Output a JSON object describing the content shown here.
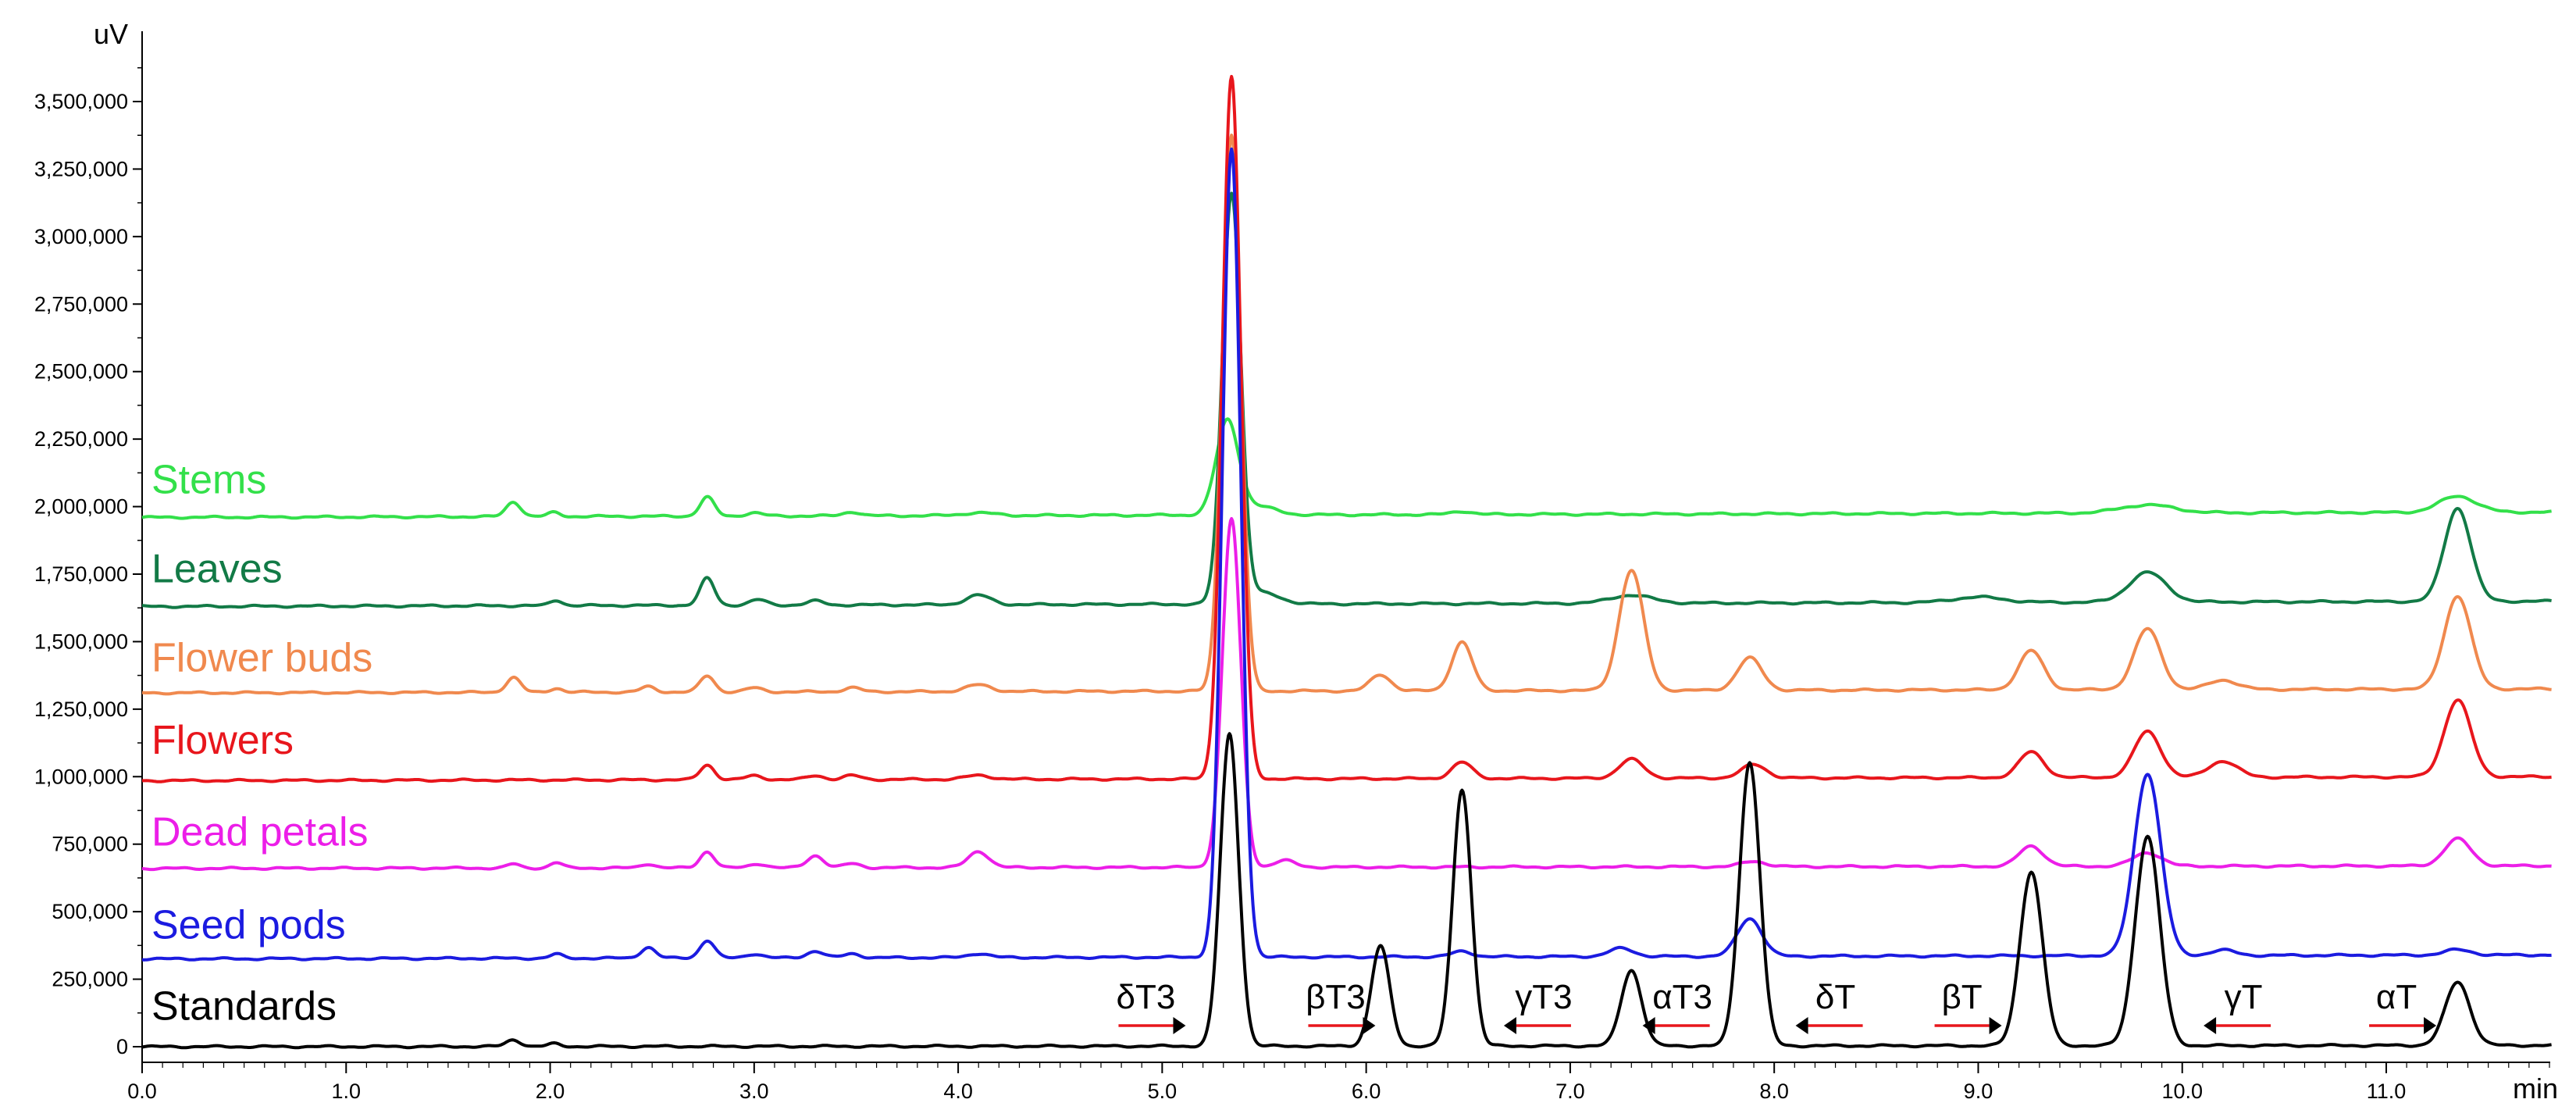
{
  "chart_data": {
    "type": "line",
    "title": "",
    "xlabel": "min",
    "ylabel": "uV",
    "xlim": [
      0,
      12
    ],
    "ylim": [
      -50000,
      3750000
    ],
    "grid": false,
    "x_ticks": [
      0,
      1,
      2,
      3,
      4,
      5,
      6,
      7,
      8,
      9,
      10,
      11
    ],
    "x_tick_labels": [
      "0.0",
      "1.0",
      "2.0",
      "3.0",
      "4.0",
      "5.0",
      "6.0",
      "7.0",
      "8.0",
      "9.0",
      "10.0",
      "11.0"
    ],
    "y_ticks": [
      0,
      250000,
      500000,
      750000,
      1000000,
      1250000,
      1500000,
      1750000,
      2000000,
      2250000,
      2500000,
      2750000,
      3000000,
      3250000,
      3500000
    ],
    "y_tick_labels": [
      "0",
      "250,000",
      "500,000",
      "750,000",
      "1,000,000",
      "1,250,000",
      "1,500,000",
      "1,750,000",
      "2,000,000",
      "2,250,000",
      "2,500,000",
      "2,750,000",
      "3,000,000",
      "3,250,000",
      "3,500,000"
    ],
    "series": [
      {
        "name": "Stems",
        "color": "#33e04a",
        "baseline": 1960000,
        "end_baseline": 1980000,
        "label_y": 2050000,
        "peaks": [
          [
            1.82,
            55000,
            0.035
          ],
          [
            2.02,
            15000,
            0.03
          ],
          [
            2.77,
            70000,
            0.035
          ],
          [
            3.0,
            12000,
            0.04
          ],
          [
            3.48,
            15000,
            0.04
          ],
          [
            4.1,
            10000,
            0.08
          ],
          [
            5.32,
            350000,
            0.055
          ],
          [
            5.48,
            30000,
            0.08
          ],
          [
            6.47,
            12000,
            0.05
          ],
          [
            9.83,
            30000,
            0.13
          ],
          [
            11.35,
            60000,
            0.09
          ]
        ]
      },
      {
        "name": "Leaves",
        "color": "#127a46",
        "baseline": 1630000,
        "end_baseline": 1650000,
        "label_y": 1720000,
        "peaks": [
          [
            2.03,
            20000,
            0.03
          ],
          [
            2.77,
            100000,
            0.035
          ],
          [
            3.02,
            20000,
            0.04
          ],
          [
            3.3,
            15000,
            0.04
          ],
          [
            4.1,
            35000,
            0.06
          ],
          [
            5.34,
            1520000,
            0.045
          ],
          [
            5.5,
            40000,
            0.08
          ],
          [
            7.3,
            30000,
            0.1
          ],
          [
            9.0,
            20000,
            0.12
          ],
          [
            9.83,
            110000,
            0.09
          ],
          [
            11.35,
            345000,
            0.065
          ]
        ]
      },
      {
        "name": "Flower buds",
        "color": "#f0894e",
        "baseline": 1310000,
        "end_baseline": 1325000,
        "label_y": 1390000,
        "peaks": [
          [
            1.82,
            55000,
            0.035
          ],
          [
            2.03,
            15000,
            0.03
          ],
          [
            2.48,
            20000,
            0.035
          ],
          [
            2.77,
            60000,
            0.035
          ],
          [
            3.0,
            15000,
            0.04
          ],
          [
            3.48,
            15000,
            0.04
          ],
          [
            4.1,
            25000,
            0.06
          ],
          [
            5.34,
            2060000,
            0.045
          ],
          [
            6.07,
            60000,
            0.05
          ],
          [
            6.47,
            180000,
            0.05
          ],
          [
            7.3,
            445000,
            0.06
          ],
          [
            7.88,
            120000,
            0.06
          ],
          [
            9.26,
            145000,
            0.06
          ],
          [
            9.83,
            225000,
            0.065
          ],
          [
            10.2,
            35000,
            0.07
          ],
          [
            11.35,
            345000,
            0.065
          ]
        ]
      },
      {
        "name": "Flowers",
        "color": "#e8161c",
        "baseline": 985000,
        "end_baseline": 1000000,
        "label_y": 1085000,
        "peaks": [
          [
            2.77,
            55000,
            0.035
          ],
          [
            3.0,
            15000,
            0.04
          ],
          [
            3.3,
            15000,
            0.04
          ],
          [
            3.48,
            15000,
            0.04
          ],
          [
            4.1,
            15000,
            0.06
          ],
          [
            5.34,
            2600000,
            0.045
          ],
          [
            6.47,
            60000,
            0.05
          ],
          [
            7.3,
            70000,
            0.06
          ],
          [
            7.9,
            50000,
            0.06
          ],
          [
            9.26,
            95000,
            0.06
          ],
          [
            9.83,
            170000,
            0.065
          ],
          [
            10.2,
            60000,
            0.07
          ],
          [
            11.35,
            285000,
            0.065
          ]
        ]
      },
      {
        "name": "Dead petals",
        "color": "#ec1ee8",
        "baseline": 660000,
        "end_baseline": 670000,
        "label_y": 745000,
        "peaks": [
          [
            1.82,
            15000,
            0.03
          ],
          [
            2.03,
            20000,
            0.03
          ],
          [
            2.48,
            15000,
            0.035
          ],
          [
            2.77,
            60000,
            0.035
          ],
          [
            3.02,
            15000,
            0.04
          ],
          [
            3.3,
            45000,
            0.04
          ],
          [
            3.48,
            15000,
            0.04
          ],
          [
            4.1,
            60000,
            0.05
          ],
          [
            5.34,
            1290000,
            0.045
          ],
          [
            5.6,
            25000,
            0.05
          ],
          [
            7.9,
            20000,
            0.06
          ],
          [
            9.26,
            75000,
            0.06
          ],
          [
            9.83,
            50000,
            0.07
          ],
          [
            11.35,
            100000,
            0.065
          ]
        ]
      },
      {
        "name": "Seed pods",
        "color": "#1b1be0",
        "baseline": 325000,
        "end_baseline": 340000,
        "label_y": 400000,
        "peaks": [
          [
            2.03,
            15000,
            0.03
          ],
          [
            2.48,
            40000,
            0.035
          ],
          [
            2.77,
            65000,
            0.035
          ],
          [
            3.0,
            15000,
            0.04
          ],
          [
            3.3,
            25000,
            0.04
          ],
          [
            3.48,
            15000,
            0.04
          ],
          [
            4.1,
            15000,
            0.05
          ],
          [
            5.34,
            2990000,
            0.045
          ],
          [
            6.47,
            20000,
            0.05
          ],
          [
            7.25,
            30000,
            0.06
          ],
          [
            7.88,
            140000,
            0.06
          ],
          [
            9.83,
            675000,
            0.065
          ],
          [
            10.2,
            20000,
            0.06
          ],
          [
            11.35,
            20000,
            0.065
          ]
        ]
      },
      {
        "name": "Standards",
        "color": "#000000",
        "baseline": 0,
        "end_baseline": 5000,
        "label_y": 100000,
        "peaks": [
          [
            1.82,
            25000,
            0.035
          ],
          [
            2.02,
            10000,
            0.03
          ],
          [
            5.33,
            1155000,
            0.045
          ],
          [
            6.07,
            370000,
            0.045
          ],
          [
            6.47,
            950000,
            0.045
          ],
          [
            7.3,
            280000,
            0.05
          ],
          [
            7.88,
            1050000,
            0.05
          ],
          [
            9.26,
            645000,
            0.055
          ],
          [
            9.83,
            775000,
            0.06
          ],
          [
            11.35,
            235000,
            0.06
          ]
        ]
      }
    ],
    "peak_annotations": [
      {
        "label": "δT3",
        "x": 4.92,
        "y": 130000,
        "arrow": "right"
      },
      {
        "label": "βT3",
        "x": 5.85,
        "y": 130000,
        "arrow": "right"
      },
      {
        "label": "γT3",
        "x": 6.87,
        "y": 130000,
        "arrow": "left"
      },
      {
        "label": "αT3",
        "x": 7.55,
        "y": 130000,
        "arrow": "left"
      },
      {
        "label": "δT",
        "x": 8.3,
        "y": 130000,
        "arrow": "left"
      },
      {
        "label": "βT",
        "x": 8.92,
        "y": 130000,
        "arrow": "right"
      },
      {
        "label": "γT",
        "x": 10.3,
        "y": 130000,
        "arrow": "left"
      },
      {
        "label": "αT",
        "x": 11.05,
        "y": 130000,
        "arrow": "right"
      }
    ],
    "annotation_label_color": "#000000",
    "annotation_arrow_color": "#e8161c"
  }
}
